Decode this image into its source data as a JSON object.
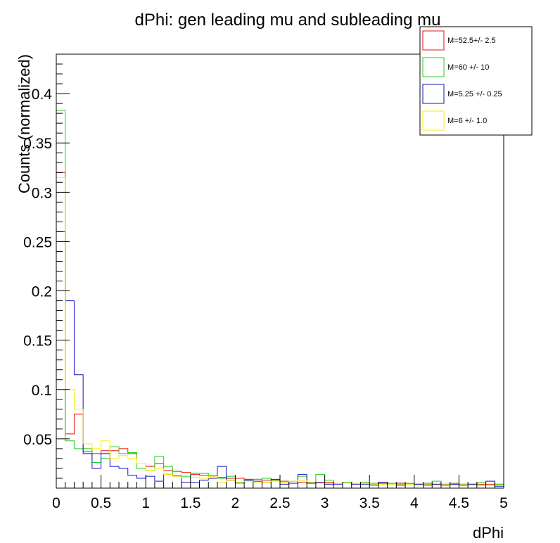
{
  "chart_data": {
    "type": "line",
    "style": "step-histogram",
    "title": "dPhi: gen leading mu and subleading mu",
    "xlabel": "dPhi",
    "ylabel": "Counts (normalized)",
    "xlim": [
      0,
      5
    ],
    "ylim": [
      0,
      0.44
    ],
    "grid": false,
    "legend_position": "top-right",
    "x_bin_edges_start": 0.0,
    "x_bin_width": 0.1,
    "x_ticks": [
      0,
      0.5,
      1,
      1.5,
      2,
      2.5,
      3,
      3.5,
      4,
      4.5,
      5
    ],
    "x_tick_labels": [
      "0",
      "0.5",
      "1",
      "1.5",
      "2",
      "2.5",
      "3",
      "3.5",
      "4",
      "4.5",
      "5"
    ],
    "y_ticks": [
      0.05,
      0.1,
      0.15,
      0.2,
      0.25,
      0.3,
      0.35,
      0.4
    ],
    "y_tick_labels": [
      "0.05",
      "0.1",
      "0.15",
      "0.2",
      "0.25",
      "0.3",
      "0.35",
      "0.4"
    ],
    "series": [
      {
        "name": "M=52.5+/- 2.5",
        "color": "#ee1111",
        "values": [
          0.32,
          0.055,
          0.075,
          0.037,
          0.035,
          0.038,
          0.038,
          0.04,
          0.035,
          0.025,
          0.022,
          0.025,
          0.018,
          0.017,
          0.016,
          0.014,
          0.013,
          0.012,
          0.011,
          0.01,
          0.01,
          0.009,
          0.009,
          0.008,
          0.008,
          0.007,
          0.007,
          0.006,
          0.006,
          0.006,
          0.006,
          0.005,
          0.005,
          0.005,
          0.005,
          0.005,
          0.005,
          0.005,
          0.005,
          0.004,
          0.004,
          0.004,
          0.004,
          0.004,
          0.004,
          0.004,
          0.004,
          0.004,
          0.004,
          0.004
        ]
      },
      {
        "name": "M=60 +/- 10",
        "color": "#22cc22",
        "values": [
          0.383,
          0.048,
          0.04,
          0.04,
          0.026,
          0.03,
          0.042,
          0.035,
          0.036,
          0.02,
          0.018,
          0.032,
          0.022,
          0.013,
          0.012,
          0.015,
          0.015,
          0.013,
          0.01,
          0.012,
          0.005,
          0.008,
          0.009,
          0.01,
          0.008,
          0.006,
          0.005,
          0.012,
          0.006,
          0.014,
          0.008,
          0.005,
          0.006,
          0.005,
          0.006,
          0.005,
          0.004,
          0.005,
          0.004,
          0.005,
          0.004,
          0.005,
          0.007,
          0.004,
          0.005,
          0.004,
          0.004,
          0.006,
          0.003,
          0.004
        ]
      },
      {
        "name": "M=5.25 +/- 0.25",
        "color": "#1111cc",
        "values": [
          0.26,
          0.19,
          0.115,
          0.035,
          0.02,
          0.035,
          0.022,
          0.02,
          0.013,
          0.01,
          0.012,
          0.007,
          0.014,
          0.012,
          0.006,
          0.006,
          0.008,
          0.01,
          0.022,
          0.008,
          0.006,
          0.008,
          0.007,
          0.006,
          0.009,
          0.004,
          0.005,
          0.014,
          0.005,
          0.006,
          0.004,
          0.004,
          0.005,
          0.004,
          0.004,
          0.003,
          0.006,
          0.004,
          0.003,
          0.004,
          0.004,
          0.003,
          0.004,
          0.003,
          0.004,
          0.003,
          0.004,
          0.003,
          0.007,
          0.002
        ]
      },
      {
        "name": "M=6 +/- 1.0",
        "color": "#ffee00",
        "values": [
          0.315,
          0.1,
          0.08,
          0.045,
          0.04,
          0.048,
          0.03,
          0.033,
          0.03,
          0.025,
          0.018,
          0.02,
          0.014,
          0.012,
          0.011,
          0.011,
          0.01,
          0.012,
          0.006,
          0.008,
          0.006,
          0.007,
          0.006,
          0.006,
          0.007,
          0.006,
          0.007,
          0.008,
          0.006,
          0.005,
          0.005,
          0.005,
          0.005,
          0.005,
          0.005,
          0.004,
          0.004,
          0.004,
          0.004,
          0.004,
          0.003,
          0.004,
          0.003,
          0.004,
          0.003,
          0.004,
          0.003,
          0.003,
          0.003,
          0.003
        ]
      }
    ]
  }
}
